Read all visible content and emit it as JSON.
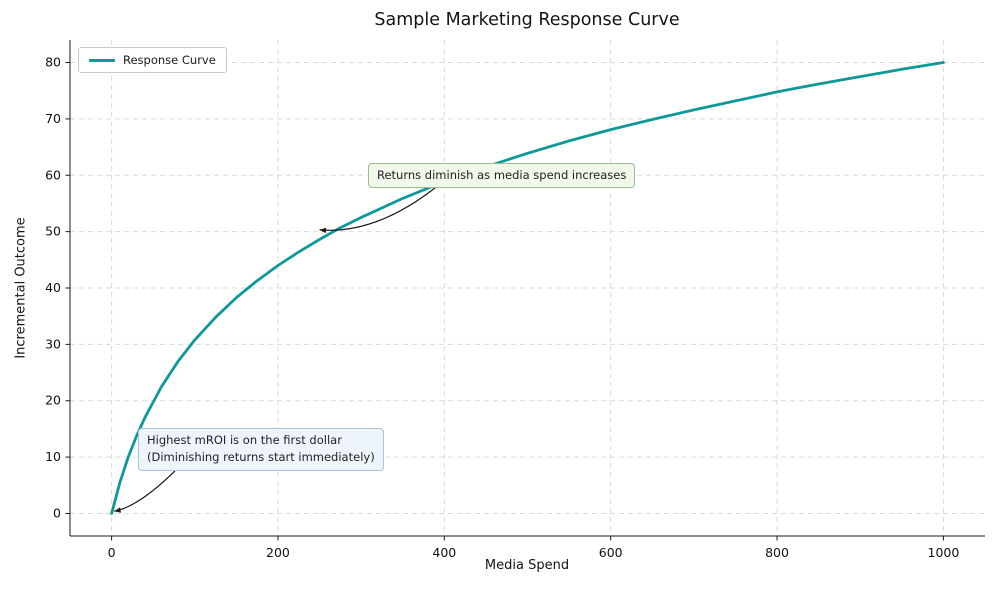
{
  "chart_data": {
    "type": "line",
    "title": "Sample Marketing Response Curve",
    "xlabel": "Media Spend",
    "ylabel": "Incremental Outcome",
    "xlim": [
      -50,
      1050
    ],
    "ylim": [
      -4,
      84
    ],
    "xticks": [
      0,
      200,
      400,
      600,
      800,
      1000
    ],
    "yticks": [
      0,
      10,
      20,
      30,
      40,
      50,
      60,
      70,
      80
    ],
    "grid": true,
    "grid_style": {
      "color": "#d9d9d9",
      "dash": "5 4"
    },
    "axis_color": "#1a1a1a",
    "legend": {
      "position": "upper-left",
      "entries": [
        {
          "label": "Response Curve",
          "color": "#0e9898"
        }
      ]
    },
    "series": [
      {
        "name": "Response Curve",
        "color": "#0e9898",
        "x": [
          0,
          10,
          20,
          30,
          40,
          60,
          80,
          100,
          125,
          150,
          175,
          200,
          225,
          250,
          275,
          300,
          350,
          400,
          450,
          500,
          550,
          600,
          650,
          700,
          750,
          800,
          850,
          900,
          950,
          1000
        ],
        "y": [
          0,
          5.5,
          10,
          13.7,
          17,
          22.5,
          27,
          30.8,
          34.8,
          38.3,
          41.3,
          44,
          46.4,
          48.6,
          50.7,
          52.5,
          55.9,
          58.9,
          61.5,
          63.9,
          66.1,
          68.1,
          69.9,
          71.6,
          73.2,
          74.8,
          76.2,
          77.5,
          78.8,
          80
        ]
      }
    ],
    "annotations": [
      {
        "text": "Returns diminish as media spend increases",
        "box_fill": "#f0f8ea",
        "box_border": "#9dbd90",
        "box_xy": [
          308,
          62.2
        ],
        "arrow": {
          "from": [
            391,
            58
          ],
          "ctrl": [
            318,
            49.5
          ],
          "to": [
            250,
            50.3
          ]
        }
      },
      {
        "text": "Highest mROI is on the first dollar\n(Diminishing returns start immediately)",
        "box_fill": "#edf4fb",
        "box_border": "#a8c3de",
        "box_xy": [
          32,
          15.2
        ],
        "arrow": {
          "from": [
            82,
            8.4
          ],
          "ctrl": [
            34,
            1.2
          ],
          "to": [
            3,
            0.4
          ]
        }
      }
    ]
  }
}
